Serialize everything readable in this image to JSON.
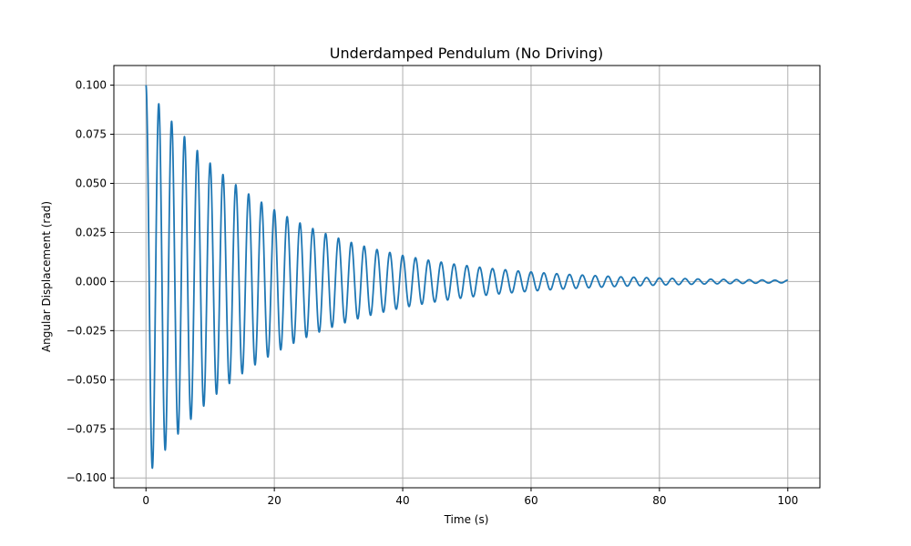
{
  "chart_data": {
    "type": "line",
    "title": "Underdamped Pendulum (No Driving)",
    "xlabel": "Time (s)",
    "ylabel": "Angular Displacement (rad)",
    "xlim": [
      -5,
      105
    ],
    "ylim": [
      -0.105,
      0.11
    ],
    "grid": true,
    "xticks": [
      0,
      20,
      40,
      60,
      80,
      100
    ],
    "xtick_labels": [
      "0",
      "20",
      "40",
      "60",
      "80",
      "100"
    ],
    "yticks": [
      0.1,
      0.075,
      0.05,
      0.025,
      0.0,
      -0.025,
      -0.05,
      -0.075,
      -0.1
    ],
    "ytick_labels": [
      "0.100",
      "0.075",
      "0.050",
      "0.025",
      "0.000",
      "−0.025",
      "−0.050",
      "−0.075",
      "−0.100"
    ],
    "series": [
      {
        "color": "#1f77b4",
        "x": [
          0,
          1,
          2,
          3,
          4,
          5,
          6,
          7,
          8,
          9,
          10,
          11,
          12,
          13,
          14,
          15,
          16,
          17,
          18,
          19,
          20,
          22,
          24,
          26,
          28,
          30,
          32,
          34,
          36,
          38,
          40,
          42,
          44,
          46,
          48,
          50,
          52,
          54,
          56,
          58,
          60,
          62,
          64,
          66,
          68,
          70,
          72,
          74,
          76,
          78,
          80,
          82,
          84,
          86,
          88,
          90,
          92,
          94,
          96,
          98,
          100
        ],
        "y": [
          0.1,
          -0.095,
          0.0905,
          -0.0858,
          0.0816,
          -0.0776,
          0.0738,
          -0.0701,
          0.0667,
          -0.0634,
          0.0603,
          -0.0573,
          0.0545,
          -0.0519,
          0.0493,
          -0.0469,
          0.0446,
          -0.0424,
          0.0404,
          -0.0384,
          0.0365,
          0.033,
          0.0298,
          0.027,
          0.0244,
          0.0221,
          0.0199,
          0.018,
          0.0163,
          0.0148,
          0.0133,
          0.0121,
          0.0109,
          0.0099,
          0.0089,
          0.0081,
          0.0073,
          0.0066,
          0.006,
          0.0054,
          0.0049,
          0.0044,
          0.004,
          0.0036,
          0.0033,
          0.003,
          0.0027,
          0.0024,
          0.0022,
          0.002,
          0.0018,
          0.0016,
          0.0015,
          0.0013,
          0.0012,
          0.0011,
          0.001,
          0.0009,
          0.0008,
          0.0007,
          0.0007
        ]
      }
    ]
  }
}
